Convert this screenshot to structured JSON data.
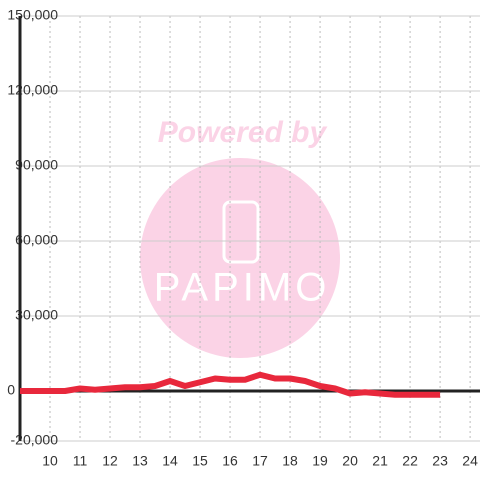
{
  "chart_data": {
    "type": "line",
    "watermark": {
      "caption": "Powered by",
      "brand": "PAPIMO"
    },
    "x": [
      9,
      9.5,
      10,
      10.5,
      11,
      11.5,
      12,
      12.5,
      13,
      13.5,
      14,
      14.5,
      15,
      15.5,
      16,
      16.5,
      17,
      17.5,
      18,
      18.5,
      19,
      19.5,
      20,
      20.5,
      21,
      21.5,
      22,
      22.5,
      23
    ],
    "series": [
      {
        "color": "#e8283c",
        "values": [
          0,
          0,
          0,
          0,
          1000,
          500,
          1000,
          1500,
          1500,
          2000,
          4000,
          2000,
          3500,
          5000,
          4500,
          4500,
          6500,
          5000,
          5000,
          4000,
          2000,
          1000,
          -1000,
          -500,
          -1000,
          -1500,
          -1500,
          -1500,
          -1500
        ]
      }
    ],
    "xlim": [
      9,
      24.33
    ],
    "xticks": [
      10,
      11,
      12,
      13,
      14,
      15,
      16,
      17,
      18,
      19,
      20,
      21,
      22,
      23,
      24
    ],
    "ylim": [
      -20000,
      150000
    ],
    "yticks": [
      {
        "value": -20000,
        "label": "-20,000"
      },
      0,
      {
        "value": 30000,
        "label": "30,000"
      },
      {
        "value": 60000,
        "label": "60,000"
      },
      {
        "value": 90000,
        "label": "90,000"
      },
      {
        "value": 120000,
        "label": "120,000"
      },
      {
        "value": 150000,
        "label": "150,000"
      }
    ],
    "grid": true
  }
}
